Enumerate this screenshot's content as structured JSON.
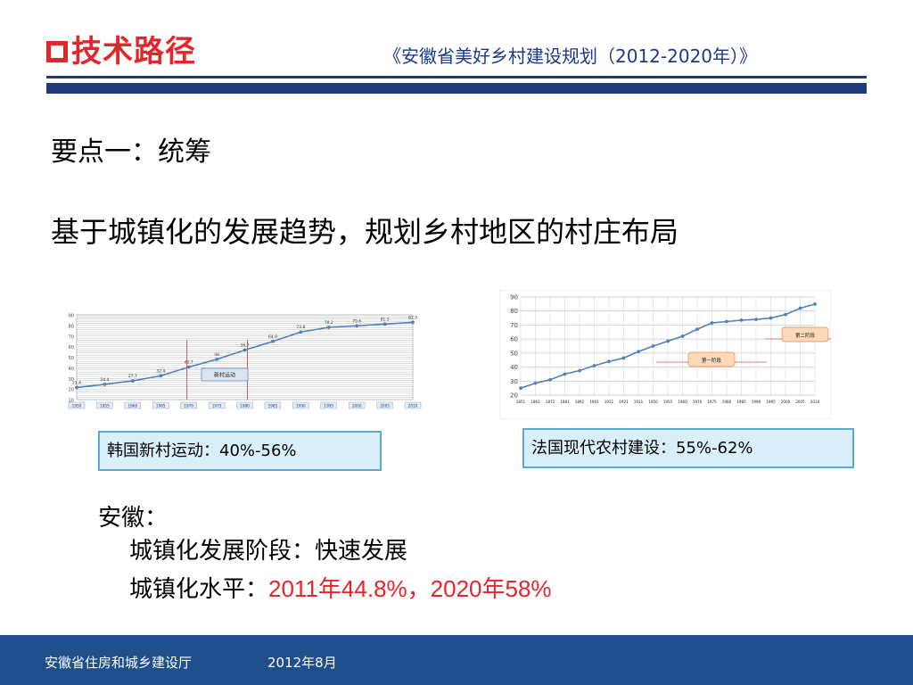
{
  "header": {
    "title": "技术路径",
    "subtitle": "《安徽省美好乡村建设规划（2012-2020年）》"
  },
  "body": {
    "point": "要点一：统筹",
    "statement": "基于城镇化的发展趋势，规划乡村地区的村庄布局"
  },
  "captions": {
    "korea": "韩国新村运动：40%-56%",
    "france": "法国现代农村建设：55%-62%"
  },
  "anhui": {
    "heading": "安徽：",
    "stage_line": "城镇化发展阶段：快速发展",
    "level_label": "城镇化水平：",
    "level_values": "2011年44.8%，2020年58%"
  },
  "footer": {
    "org": "安徽省住房和城乡建设厅",
    "date": "2012年8月"
  },
  "chart_data": [
    {
      "type": "line",
      "x": [
        "1950",
        "1955",
        "1960",
        "1965",
        "1970",
        "1975",
        "1980",
        "1985",
        "1990",
        "1995",
        "2000",
        "2005",
        "2010"
      ],
      "values": [
        21.4,
        24.4,
        27.7,
        32.4,
        40.7,
        48,
        56.7,
        64.9,
        73.8,
        78.2,
        79.6,
        81.3,
        82.9
      ],
      "data_labels": [
        "21.4",
        "24.4",
        "27.7",
        "32.4",
        "40.7",
        "48",
        "56.7",
        "64.9",
        "73.8",
        "78.2",
        "79.6",
        "81.3",
        "82.9"
      ],
      "ylim": [
        10,
        90
      ],
      "yticks": [
        "10",
        "20",
        "30",
        "40",
        "50",
        "60",
        "70",
        "80",
        "90"
      ],
      "grid": true,
      "annotation": "新村运动",
      "color": "#4f81bd"
    },
    {
      "type": "line",
      "x": [
        "1851",
        "1861",
        "1872",
        "1881",
        "1891",
        "1901",
        "1911",
        "1921",
        "1931",
        "1950",
        "1955",
        "1960",
        "1970",
        "1975",
        "1980",
        "1985",
        "1990",
        "1995",
        "2000",
        "2005",
        "2010"
      ],
      "values": [
        25,
        28.5,
        31,
        35,
        37.5,
        41,
        44,
        46.5,
        51,
        55,
        58.5,
        62,
        67,
        71.5,
        72.5,
        73.5,
        74,
        75,
        77.5,
        82,
        85
      ],
      "ylim": [
        20,
        90
      ],
      "yticks": [
        "20",
        "30",
        "40",
        "50",
        "60",
        "70",
        "80",
        "90"
      ],
      "grid": true,
      "annotations": [
        "第二阶段",
        "第一阶段"
      ],
      "color": "#4f81bd"
    }
  ]
}
